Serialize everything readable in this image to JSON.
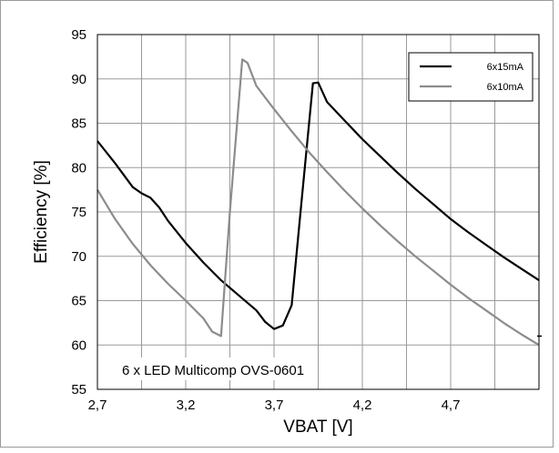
{
  "chart_data": {
    "type": "line",
    "title": "",
    "xlabel": "VBAT [V]",
    "ylabel": "Efficiency [%]",
    "xlim": [
      2.7,
      5.2
    ],
    "ylim": [
      55,
      95
    ],
    "x_ticks": [
      2.7,
      3.2,
      3.7,
      4.2,
      4.7
    ],
    "x_tick_labels": [
      "2,7",
      "3,2",
      "3,7",
      "4,2",
      "4,7"
    ],
    "y_ticks": [
      55,
      60,
      65,
      70,
      75,
      80,
      85,
      90,
      95
    ],
    "y_tick_labels": [
      "55",
      "60",
      "65",
      "70",
      "75",
      "80",
      "85",
      "90",
      "95"
    ],
    "x_grid_lines": [
      2.7,
      2.95,
      3.2,
      3.45,
      3.7,
      3.95,
      4.2,
      4.45,
      4.7,
      4.95,
      5.2
    ],
    "grid": true,
    "legend_position": "top-right",
    "annotation": "6 x LED Multicomp OVS-0601",
    "series": [
      {
        "name": "6x15mA",
        "color": "#000000",
        "points": [
          [
            2.7,
            83.0
          ],
          [
            2.8,
            80.5
          ],
          [
            2.9,
            77.8
          ],
          [
            2.95,
            77.1
          ],
          [
            3.0,
            76.6
          ],
          [
            3.05,
            75.5
          ],
          [
            3.1,
            74.0
          ],
          [
            3.2,
            71.5
          ],
          [
            3.3,
            69.3
          ],
          [
            3.4,
            67.3
          ],
          [
            3.5,
            65.6
          ],
          [
            3.6,
            63.9
          ],
          [
            3.65,
            62.6
          ],
          [
            3.7,
            61.8
          ],
          [
            3.75,
            62.2
          ],
          [
            3.8,
            64.5
          ],
          [
            3.85,
            75.0
          ],
          [
            3.92,
            89.5
          ],
          [
            3.95,
            89.6
          ],
          [
            4.0,
            87.4
          ],
          [
            4.1,
            85.3
          ],
          [
            4.2,
            83.2
          ],
          [
            4.3,
            81.3
          ],
          [
            4.4,
            79.4
          ],
          [
            4.5,
            77.6
          ],
          [
            4.6,
            75.9
          ],
          [
            4.7,
            74.2
          ],
          [
            4.8,
            72.7
          ],
          [
            4.9,
            71.3
          ],
          [
            5.0,
            69.9
          ],
          [
            5.1,
            68.6
          ],
          [
            5.2,
            67.3
          ]
        ]
      },
      {
        "name": "6x10mA",
        "color": "#8c8c8c",
        "points": [
          [
            2.7,
            77.5
          ],
          [
            2.8,
            74.2
          ],
          [
            2.9,
            71.4
          ],
          [
            3.0,
            69.0
          ],
          [
            3.1,
            66.9
          ],
          [
            3.2,
            65.0
          ],
          [
            3.3,
            63.0
          ],
          [
            3.35,
            61.5
          ],
          [
            3.4,
            61.0
          ],
          [
            3.45,
            75.0
          ],
          [
            3.52,
            92.2
          ],
          [
            3.55,
            91.8
          ],
          [
            3.6,
            89.2
          ],
          [
            3.7,
            86.6
          ],
          [
            3.8,
            84.1
          ],
          [
            3.9,
            81.7
          ],
          [
            4.0,
            79.5
          ],
          [
            4.1,
            77.4
          ],
          [
            4.2,
            75.4
          ],
          [
            4.3,
            73.5
          ],
          [
            4.4,
            71.7
          ],
          [
            4.5,
            70.0
          ],
          [
            4.6,
            68.4
          ],
          [
            4.7,
            66.8
          ],
          [
            4.8,
            65.3
          ],
          [
            4.9,
            63.9
          ],
          [
            5.0,
            62.5
          ],
          [
            5.1,
            61.2
          ],
          [
            5.2,
            60.0
          ]
        ]
      }
    ]
  }
}
